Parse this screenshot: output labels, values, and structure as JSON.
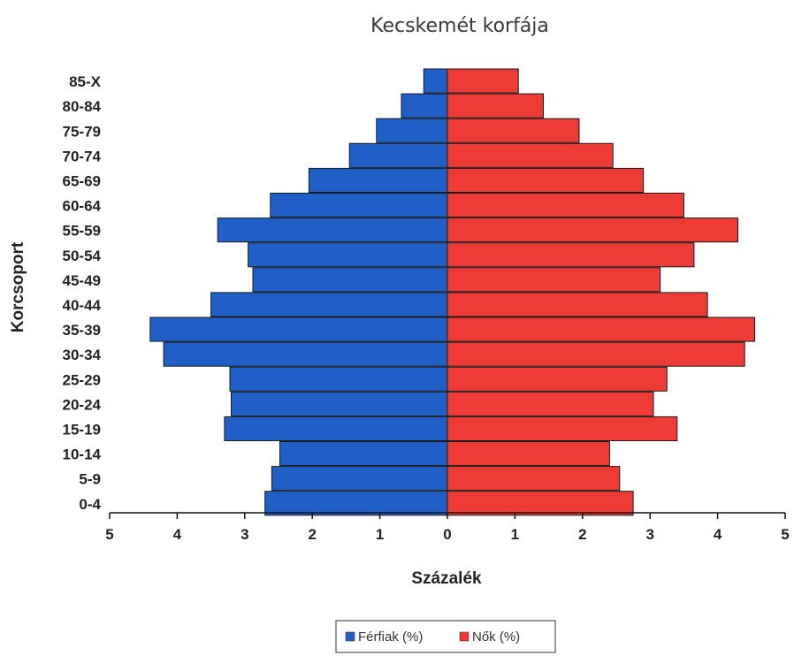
{
  "chart_data": {
    "type": "bar",
    "orientation": "horizontal-population-pyramid",
    "title": "Kecskemét korfája",
    "xlabel": "Százalék",
    "ylabel": "Korcsoport",
    "xlim": [
      -5,
      5
    ],
    "xticks": [
      -5,
      -4,
      -3,
      -2,
      -1,
      0,
      1,
      2,
      3,
      4,
      5
    ],
    "xtick_labels": [
      "5",
      "4",
      "3",
      "2",
      "1",
      "0",
      "1",
      "2",
      "3",
      "4",
      "5"
    ],
    "categories": [
      "85-X",
      "80-84",
      "75-79",
      "70-74",
      "65-69",
      "60-64",
      "55-59",
      "50-54",
      "45-49",
      "40-44",
      "35-39",
      "30-34",
      "25-29",
      "20-24",
      "15-19",
      "10-14",
      "5-9",
      "0-4"
    ],
    "series": [
      {
        "name": "Férfiak (%)",
        "color": "#1f5fc7",
        "side": "left",
        "values": [
          0.35,
          0.68,
          1.05,
          1.45,
          2.05,
          2.62,
          3.4,
          2.95,
          2.88,
          3.5,
          4.4,
          4.2,
          3.22,
          3.2,
          3.3,
          2.48,
          2.6,
          2.7
        ]
      },
      {
        "name": "Nők (%)",
        "color": "#ef3b36",
        "side": "right",
        "values": [
          1.05,
          1.42,
          1.95,
          2.45,
          2.9,
          3.5,
          4.3,
          3.65,
          3.15,
          3.85,
          4.55,
          4.4,
          3.25,
          3.05,
          3.4,
          2.4,
          2.55,
          2.75
        ]
      }
    ],
    "legend_position": "bottom",
    "grid": false
  }
}
